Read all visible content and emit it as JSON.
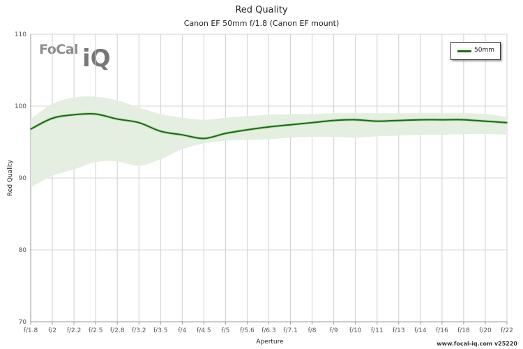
{
  "chart_data": {
    "type": "line",
    "title": "Red Quality",
    "subtitle": "Canon EF 50mm f/1.8 (Canon EF mount)",
    "xlabel": "Aperture",
    "ylabel": "Red Quality",
    "ylim": [
      70,
      110
    ],
    "yticks": [
      70,
      80,
      90,
      100,
      110
    ],
    "categories": [
      "f/1.8",
      "f/2",
      "f/2.2",
      "f/2.5",
      "f/2.8",
      "f/3.2",
      "f/3.5",
      "f/4",
      "f/4.5",
      "f/5",
      "f/5.6",
      "f/6.3",
      "f/7.1",
      "f/8",
      "f/9",
      "f/10",
      "f/11",
      "f/13",
      "f/14",
      "f/16",
      "f/18",
      "f/20",
      "f/22"
    ],
    "grid": true,
    "legend_position": "top-right",
    "series": [
      {
        "name": "50mm",
        "color": "#1a6b12",
        "values": [
          96.8,
          98.3,
          98.8,
          98.9,
          98.2,
          97.7,
          96.5,
          96.0,
          95.5,
          96.2,
          96.7,
          97.1,
          97.4,
          97.7,
          98.0,
          98.1,
          97.9,
          98.0,
          98.1,
          98.1,
          98.1,
          97.9,
          97.7
        ],
        "band_upper": [
          98.2,
          100.3,
          101.2,
          101.3,
          100.8,
          99.8,
          98.9,
          98.4,
          98.1,
          98.4,
          98.6,
          98.8,
          98.9,
          98.9,
          99.0,
          99.0,
          99.0,
          99.0,
          99.0,
          99.0,
          99.0,
          98.9,
          98.5
        ],
        "band_lower": [
          88.7,
          90.3,
          91.2,
          92.2,
          92.3,
          91.7,
          92.6,
          94.0,
          94.8,
          95.2,
          95.3,
          95.4,
          95.6,
          95.7,
          95.7,
          95.6,
          95.8,
          95.9,
          96.0,
          96.0,
          96.1,
          96.1,
          96.0
        ],
        "band_color": "#e3eedf"
      }
    ]
  },
  "logo": {
    "text_focal": "FoCal",
    "text_iq": "iQ"
  },
  "footer": {
    "watermark": "www.focal-iq.com  v25220"
  }
}
